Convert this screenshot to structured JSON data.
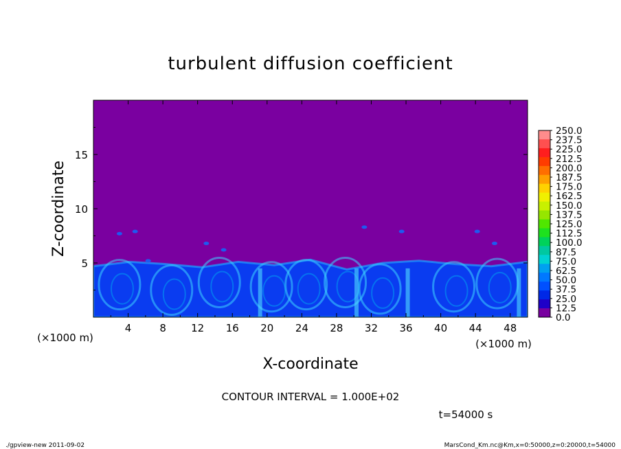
{
  "chart_data": {
    "type": "heatmap",
    "title": "turbulent diffusion coefficient",
    "xlabel": "X-coordinate",
    "ylabel": "Z-coordinate",
    "x_unit_left": "(×1000 m)",
    "x_unit_right": "(×1000 m)",
    "xlim": [
      0,
      50
    ],
    "ylim": [
      0,
      20
    ],
    "x_ticks": [
      "4",
      "8",
      "12",
      "16",
      "20",
      "24",
      "28",
      "32",
      "36",
      "40",
      "44",
      "48"
    ],
    "y_ticks": [
      "5",
      "10",
      "15"
    ],
    "colorbar_labels": [
      "250.0",
      "237.5",
      "225.0",
      "212.5",
      "200.0",
      "187.5",
      "175.0",
      "162.5",
      "150.0",
      "137.5",
      "125.0",
      "112.5",
      "100.0",
      "87.5",
      "75.0",
      "62.5",
      "50.0",
      "37.5",
      "25.0",
      "12.5",
      "0.0"
    ],
    "colorbar_colors": [
      "#ff8c8c",
      "#ff5050",
      "#ff1e1e",
      "#ff3c00",
      "#ff6e00",
      "#ffa000",
      "#ffd200",
      "#f0f000",
      "#c8f000",
      "#96e600",
      "#50e600",
      "#1ee11e",
      "#00d25a",
      "#00c8a0",
      "#00d2d2",
      "#00a0f0",
      "#0078ff",
      "#0050ff",
      "#0028e6",
      "#1e00c8",
      "#7800a0"
    ],
    "background_color": "#7a00a0",
    "turbulent_layer_top": [
      4.7,
      5.1,
      4.9,
      4.6,
      5.1,
      4.8,
      5.3,
      4.4,
      5.0,
      5.2,
      4.9,
      4.7,
      5.1
    ],
    "contour_interval": "CONTOUR INTERVAL = 1.000E+02",
    "time": "t=54000 s"
  },
  "footer": {
    "left": "./gpview-new   2011-09-02",
    "right": "MarsCond_Km.nc@Km,x=0:50000,z=0:20000,t=54000"
  }
}
